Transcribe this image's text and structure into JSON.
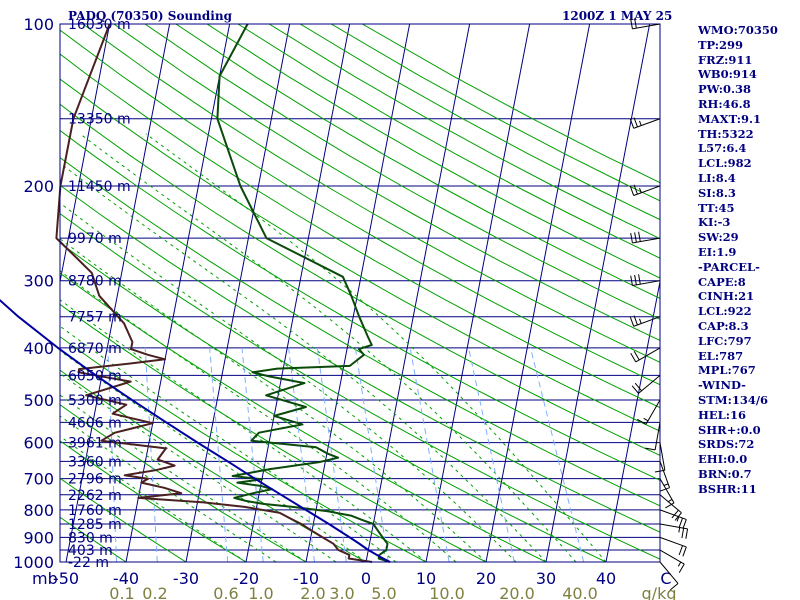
{
  "chart_data": {
    "type": "line",
    "subtype": "skew-T log-P sounding",
    "title": "PADQ (70350) Sounding",
    "valid_time": "1200Z  1 MAY 25",
    "xaxis": {
      "label": "°C",
      "range": [
        -50,
        50
      ],
      "ticks": [
        "-50",
        "-40",
        "-30",
        "-20",
        "-10",
        "0",
        "10",
        "20",
        "30",
        "40",
        "C"
      ]
    },
    "yaxis": {
      "label": "mb",
      "scale": "log",
      "range": [
        1000,
        100
      ],
      "ticks": [
        "100",
        "200",
        "300",
        "400",
        "500",
        "600",
        "700",
        "800",
        "900",
        "1000"
      ]
    },
    "mixing_ratio": {
      "unit": "g/kg",
      "labels": [
        "0.1",
        "0.2",
        "0.6",
        "1.0",
        "2.0",
        "3.0",
        "5.0",
        "10.0",
        "20.0",
        "40.0"
      ]
    },
    "height_labels": [
      {
        "p": 100,
        "label": "16030 m"
      },
      {
        "p": 150,
        "label": "13350 m"
      },
      {
        "p": 200,
        "label": "11450 m"
      },
      {
        "p": 250,
        "label": "9970 m"
      },
      {
        "p": 300,
        "label": "8780 m"
      },
      {
        "p": 350,
        "label": "7757 m"
      },
      {
        "p": 400,
        "label": "6870 m"
      },
      {
        "p": 450,
        "label": "6050 m"
      },
      {
        "p": 500,
        "label": "5300 m"
      },
      {
        "p": 550,
        "label": "4606 m"
      },
      {
        "p": 600,
        "label": "3961 m"
      },
      {
        "p": 650,
        "label": "3360 m"
      },
      {
        "p": 700,
        "label": "2796 m"
      },
      {
        "p": 750,
        "label": "2262 m"
      },
      {
        "p": 800,
        "label": "1760 m"
      },
      {
        "p": 850,
        "label": "1285 m"
      },
      {
        "p": 900,
        "label": "830 m"
      },
      {
        "p": 950,
        "label": "403 m"
      },
      {
        "p": 1000,
        "label": "-22 m"
      }
    ],
    "series": [
      {
        "name": "Temperature",
        "color": "#0a4a0a",
        "points": [
          [
            1000,
            4
          ],
          [
            985,
            2
          ],
          [
            970,
            2
          ],
          [
            950,
            3
          ],
          [
            925,
            3
          ],
          [
            900,
            2
          ],
          [
            875,
            1
          ],
          [
            850,
            0
          ],
          [
            835,
            -2
          ],
          [
            820,
            -4
          ],
          [
            805,
            -8
          ],
          [
            790,
            -14
          ],
          [
            780,
            -19
          ],
          [
            770,
            -22
          ],
          [
            760,
            -24
          ],
          [
            745,
            -21
          ],
          [
            732,
            -18
          ],
          [
            722,
            -20
          ],
          [
            712,
            -24
          ],
          [
            702,
            -20
          ],
          [
            692,
            -25
          ],
          [
            682,
            -22
          ],
          [
            672,
            -19
          ],
          [
            662,
            -15
          ],
          [
            652,
            -11
          ],
          [
            640,
            -8
          ],
          [
            628,
            -10
          ],
          [
            612,
            -12
          ],
          [
            595,
            -23
          ],
          [
            575,
            -22
          ],
          [
            555,
            -15
          ],
          [
            535,
            -20
          ],
          [
            515,
            -15
          ],
          [
            490,
            -22
          ],
          [
            465,
            -16
          ],
          [
            452,
            -22
          ],
          [
            444,
            -25
          ],
          [
            437,
            -21
          ],
          [
            432,
            -9
          ],
          [
            422,
            -8
          ],
          [
            412,
            -7
          ],
          [
            402,
            -8
          ],
          [
            395,
            -6
          ],
          [
            380,
            -7
          ],
          [
            350,
            -9
          ],
          [
            320,
            -11
          ],
          [
            295,
            -13
          ],
          [
            250,
            -27
          ],
          [
            200,
            -33
          ],
          [
            150,
            -39
          ],
          [
            125,
            -40
          ],
          [
            100,
            -37
          ]
        ]
      },
      {
        "name": "Dewpoint",
        "color": "#4a2020",
        "points": [
          [
            1000,
            1
          ],
          [
            985,
            -3
          ],
          [
            970,
            -3
          ],
          [
            950,
            -5
          ],
          [
            925,
            -6
          ],
          [
            900,
            -8
          ],
          [
            875,
            -10
          ],
          [
            850,
            -12
          ],
          [
            830,
            -14
          ],
          [
            810,
            -16
          ],
          [
            790,
            -22
          ],
          [
            775,
            -29
          ],
          [
            760,
            -40
          ],
          [
            745,
            -33
          ],
          [
            728,
            -36
          ],
          [
            712,
            -40
          ],
          [
            700,
            -39
          ],
          [
            690,
            -43
          ],
          [
            675,
            -38
          ],
          [
            662,
            -35
          ],
          [
            645,
            -38
          ],
          [
            615,
            -37
          ],
          [
            595,
            -48
          ],
          [
            575,
            -46
          ],
          [
            552,
            -40
          ],
          [
            530,
            -47
          ],
          [
            510,
            -45
          ],
          [
            490,
            -52
          ],
          [
            462,
            -45
          ],
          [
            444,
            -54
          ],
          [
            438,
            -54
          ],
          [
            428,
            -46
          ],
          [
            420,
            -40
          ],
          [
            412,
            -43
          ],
          [
            402,
            -46
          ],
          [
            390,
            -46
          ],
          [
            360,
            -48
          ],
          [
            320,
            -53
          ],
          [
            290,
            -55
          ],
          [
            250,
            -62
          ],
          [
            200,
            -63
          ],
          [
            150,
            -63
          ],
          [
            100,
            -60
          ]
        ]
      },
      {
        "name": "Parcel",
        "color": "#0000a0",
        "points": [
          [
            1000,
            4
          ],
          [
            982,
            2.5
          ],
          [
            950,
            0
          ],
          [
            922,
            -1.9
          ],
          [
            900,
            -3.5
          ],
          [
            850,
            -7.4
          ],
          [
            800,
            -11.7
          ],
          [
            750,
            -16.3
          ],
          [
            700,
            -21.2
          ],
          [
            650,
            -26.3
          ],
          [
            600,
            -31.9
          ],
          [
            550,
            -37.8
          ],
          [
            500,
            -44.2
          ],
          [
            450,
            -51
          ],
          [
            400,
            -58.2
          ],
          [
            350,
            -65.8
          ],
          [
            300,
            -73.7
          ],
          [
            250,
            -82
          ],
          [
            200,
            -90.5
          ],
          [
            150,
            -99
          ],
          [
            120,
            -104
          ]
        ]
      }
    ],
    "wind_barbs": [
      {
        "p": 1000,
        "dir": 140,
        "kt": 10
      },
      {
        "p": 950,
        "dir": 120,
        "kt": 15
      },
      {
        "p": 900,
        "dir": 110,
        "kt": 20
      },
      {
        "p": 850,
        "dir": 100,
        "kt": 25
      },
      {
        "p": 800,
        "dir": 110,
        "kt": 25
      },
      {
        "p": 750,
        "dir": 130,
        "kt": 20
      },
      {
        "p": 700,
        "dir": 150,
        "kt": 15
      },
      {
        "p": 650,
        "dir": 160,
        "kt": 15
      },
      {
        "p": 600,
        "dir": 170,
        "kt": 10
      },
      {
        "p": 550,
        "dir": 190,
        "kt": 10
      },
      {
        "p": 500,
        "dir": 210,
        "kt": 15
      },
      {
        "p": 450,
        "dir": 230,
        "kt": 20
      },
      {
        "p": 400,
        "dir": 240,
        "kt": 20
      },
      {
        "p": 350,
        "dir": 250,
        "kt": 25
      },
      {
        "p": 300,
        "dir": 260,
        "kt": 30
      },
      {
        "p": 250,
        "dir": 260,
        "kt": 30
      },
      {
        "p": 200,
        "dir": 250,
        "kt": 25
      },
      {
        "p": 150,
        "dir": 250,
        "kt": 25
      },
      {
        "p": 100,
        "dir": 260,
        "kt": 20
      }
    ],
    "grid": true,
    "colors": {
      "frame": "#000080",
      "isotherm": "#000080",
      "isobar": "#000080",
      "dry_adiabat": "#00a000",
      "moist_adiabat": "#00a000",
      "mixing_ratio": "#7fb0ff",
      "label": "#000080",
      "mixing_label": "#808040"
    }
  },
  "indices": [
    "WMO:70350",
    "TP:299",
    "FRZ:911",
    "WB0:914",
    "PW:0.38",
    "RH:46.8",
    "MAXT:9.1",
    "TH:5322",
    "L57:6.4",
    "LCL:982",
    "LI:8.4",
    "SI:8.3",
    "TT:45",
    "KI:-3",
    "SW:29",
    "EI:1.9",
    "-PARCEL-",
    "CAPE:8",
    "CINH:21",
    "LCL:922",
    "CAP:8.3",
    "LFC:797",
    "EL:787",
    "MPL:767",
    "-WIND-",
    "STM:134/6",
    "HEL:16",
    "SHR+:0.0",
    "SRDS:72",
    "EHI:0.0",
    "BRN:0.7",
    "BSHR:11"
  ]
}
